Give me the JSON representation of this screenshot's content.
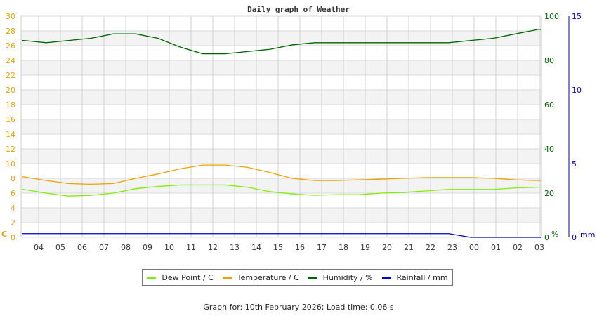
{
  "chart_data": {
    "type": "line",
    "title": "Daily graph of Weather",
    "x": [
      "04",
      "05",
      "06",
      "07",
      "08",
      "09",
      "10",
      "11",
      "12",
      "13",
      "14",
      "15",
      "16",
      "17",
      "18",
      "19",
      "20",
      "21",
      "22",
      "23",
      "00",
      "01",
      "02",
      "03"
    ],
    "axes": {
      "left": {
        "label": "C",
        "ticks": [
          0,
          2,
          4,
          6,
          8,
          10,
          12,
          14,
          16,
          18,
          20,
          22,
          24,
          26,
          28,
          30
        ],
        "range": [
          0,
          30
        ],
        "color": "#f0a000"
      },
      "right": {
        "label": "%",
        "ticks": [
          0,
          20,
          40,
          60,
          80,
          100
        ],
        "range": [
          0,
          100
        ],
        "color": "#006400"
      },
      "right2": {
        "label": "mm",
        "ticks": [
          0,
          5,
          10,
          15
        ],
        "range": [
          0,
          15
        ],
        "color": "#0000c0"
      }
    },
    "series": [
      {
        "name": "Dew Point / C",
        "color": "#80ee00",
        "axis": "left",
        "values": [
          6.5,
          6.0,
          5.6,
          5.7,
          6.0,
          6.6,
          6.9,
          7.1,
          7.1,
          7.1,
          6.8,
          6.2,
          5.9,
          5.7,
          5.8,
          5.8,
          6.0,
          6.1,
          6.3,
          6.5,
          6.5,
          6.5,
          6.7,
          6.8
        ]
      },
      {
        "name": "Temperature / C",
        "color": "#f0a000",
        "axis": "left",
        "values": [
          8.2,
          7.7,
          7.3,
          7.2,
          7.3,
          8.0,
          8.6,
          9.3,
          9.8,
          9.8,
          9.5,
          8.8,
          8.0,
          7.7,
          7.7,
          7.8,
          7.9,
          8.0,
          8.1,
          8.1,
          8.1,
          8.0,
          7.8,
          7.7
        ]
      },
      {
        "name": "Humidity / %",
        "color": "#006400",
        "axis": "right",
        "values": [
          89,
          88,
          89,
          90,
          92,
          92,
          90,
          86,
          83,
          83,
          84,
          85,
          87,
          88,
          88,
          88,
          88,
          88,
          88,
          88,
          89,
          90,
          92,
          94
        ]
      },
      {
        "name": "Rainfall / mm",
        "color": "#0000c0",
        "axis": "right2",
        "values": [
          0.25,
          0.25,
          0.25,
          0.25,
          0.25,
          0.25,
          0.25,
          0.25,
          0.25,
          0.25,
          0.25,
          0.25,
          0.25,
          0.25,
          0.25,
          0.25,
          0.25,
          0.25,
          0.25,
          0.25,
          0,
          0,
          0,
          0
        ]
      }
    ],
    "grid": true,
    "legend_position": "bottom"
  },
  "legend": [
    {
      "label": "Dew Point / C",
      "color": "#80ee00"
    },
    {
      "label": "Temperature / C",
      "color": "#f0a000"
    },
    {
      "label": "Humidity / %",
      "color": "#006400"
    },
    {
      "label": "Rainfall / mm",
      "color": "#0000c0"
    }
  ],
  "footer": "Graph for: 10th February 2026; Load time: 0.06 s"
}
